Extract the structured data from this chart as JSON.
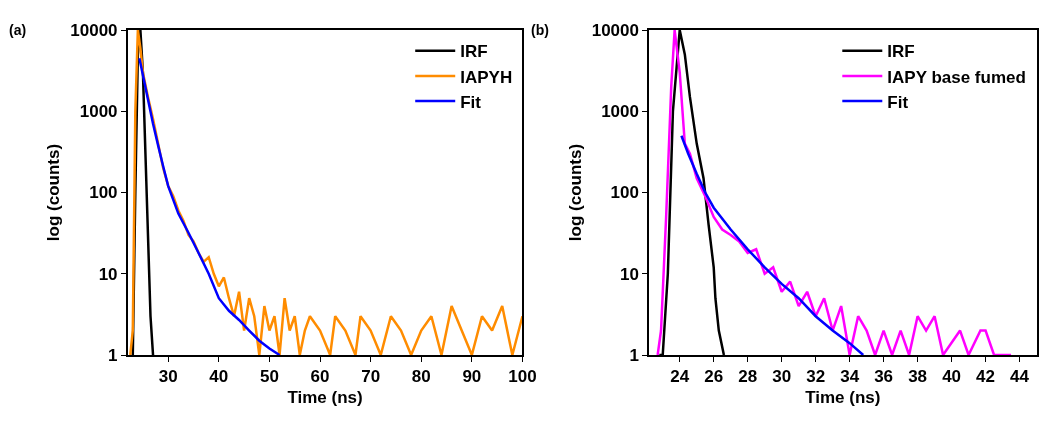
{
  "chart_data": [
    {
      "type": "line",
      "title": "(a)",
      "xlabel": "Time (ns)",
      "ylabel": "log (counts)",
      "log": "y",
      "legend": "top right",
      "xlim": [
        22,
        100
      ],
      "xticks": [
        30,
        40,
        50,
        60,
        70,
        80,
        90,
        100
      ],
      "ylim": [
        1,
        10000
      ],
      "yticks": [
        1,
        10,
        100,
        1000,
        10000
      ],
      "series": [
        {
          "name": "IRF",
          "color": "#000000",
          "x": [
            23,
            23.5,
            24,
            24.5,
            25,
            25.5,
            26,
            26.5,
            27
          ],
          "values": [
            1,
            100,
            5000,
            10000,
            3000,
            300,
            30,
            3,
            1
          ]
        },
        {
          "name": "IAPYH",
          "color": "#ff8c00",
          "x": [
            22.5,
            23,
            23.5,
            24,
            24.5,
            25,
            26,
            27,
            28,
            29,
            30,
            31,
            32,
            33,
            34,
            35,
            36,
            37,
            38,
            39,
            40,
            41,
            42,
            43,
            44,
            45,
            46,
            47,
            48,
            49,
            50,
            51,
            52,
            53,
            54,
            55,
            56,
            57,
            58,
            60,
            62,
            63,
            65,
            67,
            68,
            70,
            72,
            74,
            76,
            78,
            80,
            82,
            84,
            86,
            88,
            90,
            92,
            94,
            96,
            98,
            100
          ],
          "values": [
            1,
            2,
            1000,
            10000,
            6000,
            3000,
            1500,
            800,
            400,
            200,
            120,
            90,
            60,
            45,
            30,
            25,
            18,
            14,
            16,
            10,
            7,
            9,
            5,
            3,
            6,
            2,
            5,
            3,
            1,
            4,
            2,
            3,
            1,
            5,
            2,
            3,
            1,
            2,
            3,
            2,
            1,
            3,
            2,
            1,
            3,
            2,
            1,
            3,
            2,
            1,
            2,
            3,
            1,
            4,
            2,
            1,
            3,
            2,
            4,
            1,
            3
          ]
        },
        {
          "name": "Fit",
          "color": "#0000ff",
          "x": [
            24.3,
            25,
            26,
            27,
            28,
            29,
            30,
            32,
            34,
            36,
            38,
            40,
            42,
            44,
            46,
            48,
            50,
            52
          ],
          "values": [
            4500,
            2800,
            1400,
            700,
            380,
            210,
            120,
            55,
            32,
            18,
            10,
            5,
            3.5,
            2.7,
            2,
            1.5,
            1.2,
            1
          ]
        }
      ]
    },
    {
      "type": "line",
      "title": "(b)",
      "xlabel": "Time (ns)",
      "ylabel": "log (counts)",
      "log": "y",
      "legend": "top right",
      "xlim": [
        22.2,
        45
      ],
      "xticks": [
        24,
        26,
        28,
        30,
        32,
        34,
        36,
        38,
        40,
        42,
        44
      ],
      "ylim": [
        1,
        10000
      ],
      "yticks": [
        1,
        10,
        100,
        1000,
        10000
      ],
      "series": [
        {
          "name": "IRF",
          "color": "#000000",
          "x": [
            22.8,
            23,
            23.3,
            23.6,
            24,
            24.3,
            24.6,
            25,
            25.4,
            25.7,
            26,
            26.1,
            26.3,
            26.6
          ],
          "values": [
            1,
            1,
            10,
            1000,
            10000,
            5000,
            1500,
            400,
            150,
            40,
            12,
            5,
            2,
            1
          ]
        },
        {
          "name": "IAPY base fumed",
          "color": "#ff00ff",
          "x": [
            22.7,
            22.9,
            23.2,
            23.5,
            23.7,
            24,
            24.3,
            24.6,
            25,
            25.5,
            26,
            26.5,
            27,
            27.5,
            28,
            28.5,
            29,
            29.5,
            30,
            30.5,
            31,
            31.5,
            32,
            32.5,
            33,
            33.5,
            34,
            34.5,
            35,
            35.5,
            36,
            36.5,
            37,
            37.5,
            38,
            38.5,
            39,
            39.5,
            40.5,
            41,
            41.7,
            42,
            42.5,
            43.5
          ],
          "values": [
            1,
            2,
            50,
            2000,
            10000,
            3000,
            400,
            300,
            150,
            90,
            50,
            35,
            30,
            25,
            18,
            20,
            10,
            12,
            6,
            8,
            4,
            6,
            3,
            5,
            2,
            4,
            1,
            3,
            2,
            1,
            2,
            1,
            2,
            1,
            3,
            2,
            3,
            1,
            2,
            1,
            2,
            2,
            1,
            1
          ]
        },
        {
          "name": "Fit",
          "color": "#0000ff",
          "x": [
            24.1,
            24.5,
            25,
            25.5,
            26,
            27,
            28,
            29,
            30,
            31,
            32,
            33,
            34,
            34.8
          ],
          "values": [
            500,
            300,
            170,
            100,
            65,
            35,
            20,
            12,
            7.5,
            5,
            3,
            2,
            1.4,
            1
          ]
        }
      ]
    }
  ]
}
